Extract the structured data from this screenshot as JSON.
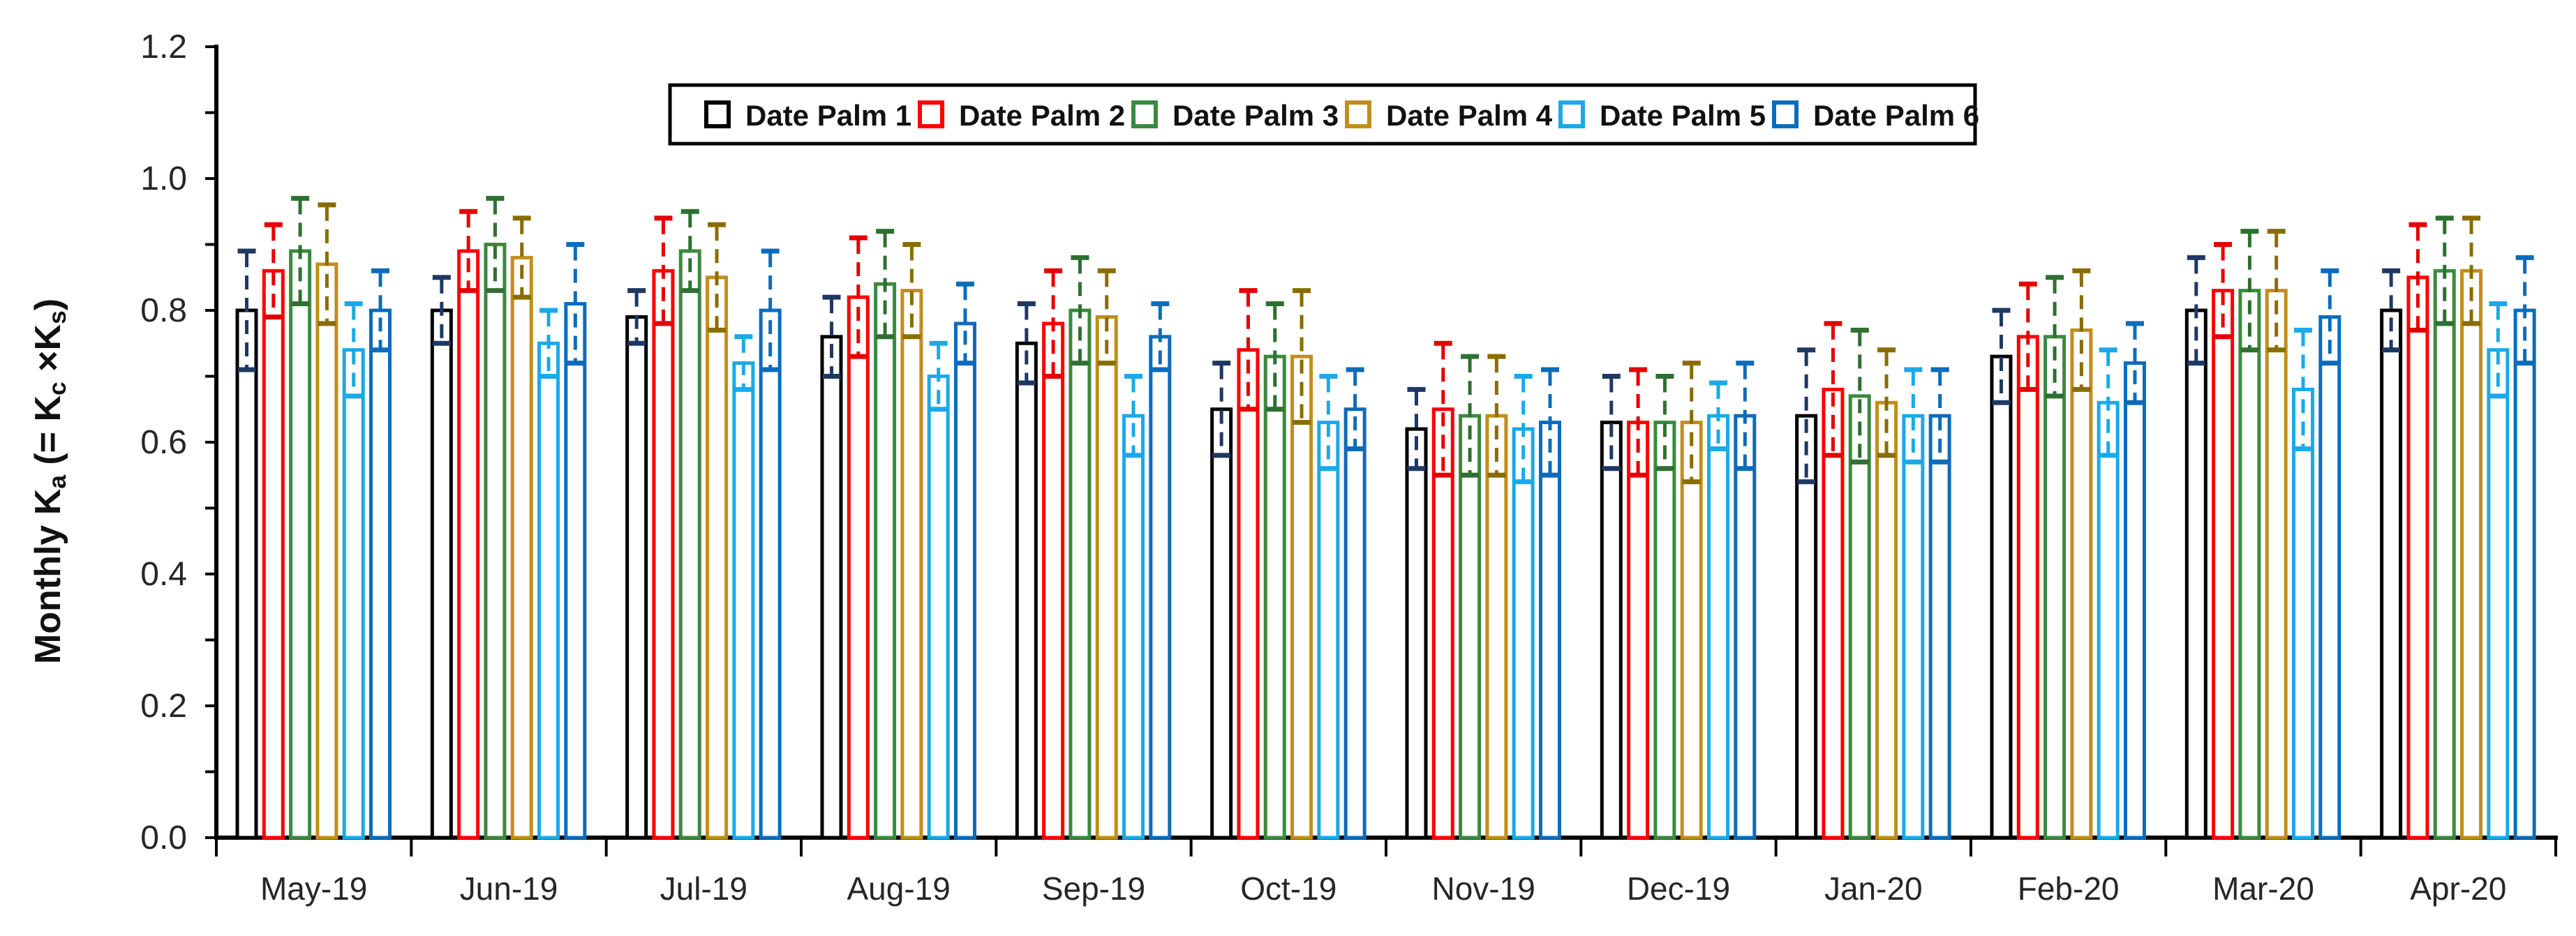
{
  "chart_data": {
    "type": "bar",
    "title": "",
    "xlabel": "",
    "ylabel": "Monthly Ka (= Kc ×Ks)",
    "ylabel_rich": [
      [
        "t",
        "Monthly K"
      ],
      [
        "sub",
        "a"
      ],
      [
        "t",
        " (= K"
      ],
      [
        "sub",
        "c"
      ],
      [
        "t",
        " ×K"
      ],
      [
        "sub",
        "s"
      ],
      [
        "t",
        ")"
      ]
    ],
    "ylim": [
      0.0,
      1.2
    ],
    "ytick_step": 0.1,
    "ytick_labels": [
      "0.0",
      "0.2",
      "0.4",
      "0.6",
      "0.8",
      "1.0",
      "1.2"
    ],
    "grid": false,
    "legend_position": "top-center",
    "bar_fill": "#ffffff",
    "categories": [
      "May-19",
      "Jun-19",
      "Jul-19",
      "Aug-19",
      "Sep-19",
      "Oct-19",
      "Nov-19",
      "Dec-19",
      "Jan-20",
      "Feb-20",
      "Mar-20",
      "Apr-20"
    ],
    "series": [
      {
        "name": "Date Palm 1",
        "color": "#000000",
        "error_color": "#1F3864",
        "values": [
          0.8,
          0.8,
          0.79,
          0.76,
          0.75,
          0.65,
          0.62,
          0.63,
          0.64,
          0.73,
          0.8,
          0.8
        ],
        "errors": [
          0.09,
          0.05,
          0.04,
          0.06,
          0.06,
          0.07,
          0.06,
          0.07,
          0.1,
          0.07,
          0.08,
          0.06
        ]
      },
      {
        "name": "Date Palm 2",
        "color": "#FF0000",
        "error_color": "#E60000",
        "values": [
          0.86,
          0.89,
          0.86,
          0.82,
          0.78,
          0.74,
          0.65,
          0.63,
          0.68,
          0.76,
          0.83,
          0.85
        ],
        "errors": [
          0.07,
          0.06,
          0.08,
          0.09,
          0.08,
          0.09,
          0.1,
          0.08,
          0.1,
          0.08,
          0.07,
          0.08
        ]
      },
      {
        "name": "Date Palm 3",
        "color": "#3A8A3E",
        "error_color": "#2E7031",
        "values": [
          0.89,
          0.9,
          0.89,
          0.84,
          0.8,
          0.73,
          0.64,
          0.63,
          0.67,
          0.76,
          0.83,
          0.86
        ],
        "errors": [
          0.08,
          0.07,
          0.06,
          0.08,
          0.08,
          0.08,
          0.09,
          0.07,
          0.1,
          0.09,
          0.09,
          0.08
        ]
      },
      {
        "name": "Date Palm 4",
        "color": "#C18E1B",
        "error_color": "#8A6D00",
        "values": [
          0.87,
          0.88,
          0.85,
          0.83,
          0.79,
          0.73,
          0.64,
          0.63,
          0.66,
          0.77,
          0.83,
          0.86
        ],
        "errors": [
          0.09,
          0.06,
          0.08,
          0.07,
          0.07,
          0.1,
          0.09,
          0.09,
          0.08,
          0.09,
          0.09,
          0.08
        ]
      },
      {
        "name": "Date Palm 5",
        "color": "#1BA9E8",
        "error_color": "#1BA9E8",
        "values": [
          0.74,
          0.75,
          0.72,
          0.7,
          0.64,
          0.63,
          0.62,
          0.64,
          0.64,
          0.66,
          0.68,
          0.74
        ],
        "errors": [
          0.07,
          0.05,
          0.04,
          0.05,
          0.06,
          0.07,
          0.08,
          0.05,
          0.07,
          0.08,
          0.09,
          0.07
        ]
      },
      {
        "name": "Date Palm 6",
        "color": "#0C6CBB",
        "error_color": "#0C6CBB",
        "values": [
          0.8,
          0.81,
          0.8,
          0.78,
          0.76,
          0.65,
          0.63,
          0.64,
          0.64,
          0.72,
          0.79,
          0.8
        ],
        "errors": [
          0.06,
          0.09,
          0.09,
          0.06,
          0.05,
          0.06,
          0.08,
          0.08,
          0.07,
          0.06,
          0.07,
          0.08
        ]
      }
    ]
  }
}
